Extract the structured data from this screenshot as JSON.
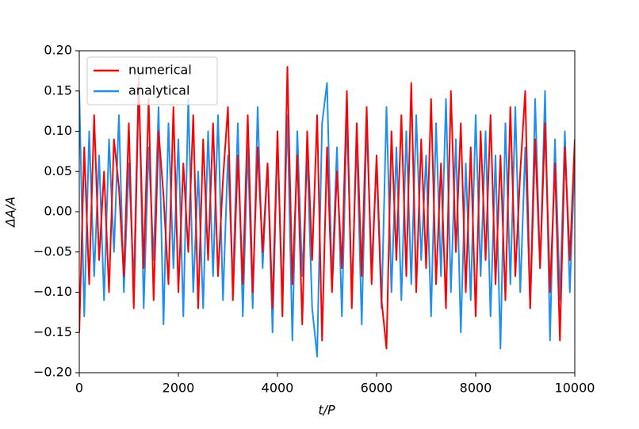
{
  "chart_data": {
    "type": "line",
    "xlabel": "t/P",
    "ylabel": "ΔA/A",
    "x": [
      0,
      100,
      200,
      300,
      400,
      500,
      600,
      700,
      800,
      900,
      1000,
      1100,
      1200,
      1300,
      1400,
      1500,
      1600,
      1700,
      1800,
      1900,
      2000,
      2100,
      2200,
      2300,
      2400,
      2500,
      2600,
      2700,
      2800,
      2900,
      3000,
      3100,
      3200,
      3300,
      3400,
      3500,
      3600,
      3700,
      3800,
      3900,
      4000,
      4100,
      4200,
      4300,
      4400,
      4500,
      4600,
      4700,
      4800,
      4900,
      5000,
      5100,
      5200,
      5300,
      5400,
      5500,
      5600,
      5700,
      5800,
      5900,
      6000,
      6100,
      6200,
      6300,
      6400,
      6500,
      6600,
      6700,
      6800,
      6900,
      7000,
      7100,
      7200,
      7300,
      7400,
      7500,
      7600,
      7700,
      7800,
      7900,
      8000,
      8100,
      8200,
      8300,
      8400,
      8500,
      8600,
      8700,
      8800,
      8900,
      9000,
      9100,
      9200,
      9300,
      9400,
      9500,
      9600,
      9700,
      9800,
      9900,
      10000
    ],
    "series": [
      {
        "name": "analytical",
        "color": "#1f8fef",
        "values": [
          0.15,
          -0.13,
          0.1,
          -0.08,
          0.07,
          -0.11,
          0.09,
          -0.05,
          0.12,
          -0.1,
          0.06,
          -0.09,
          0.17,
          -0.12,
          0.08,
          -0.06,
          0.13,
          -0.14,
          0.11,
          -0.07,
          0.09,
          -0.13,
          0.14,
          -0.1,
          0.05,
          -0.12,
          0.1,
          -0.08,
          0.12,
          -0.11,
          0.07,
          -0.09,
          0.11,
          -0.13,
          0.08,
          -0.12,
          0.13,
          -0.07,
          0.06,
          -0.15,
          0.09,
          -0.11,
          0.12,
          -0.16,
          0.1,
          -0.08,
          0.07,
          -0.12,
          -0.18,
          0.11,
          0.16,
          -0.09,
          0.08,
          -0.13,
          0.12,
          -0.1,
          0.09,
          -0.14,
          0.11,
          -0.07,
          0.06,
          -0.12,
          0.13,
          -0.1,
          0.08,
          -0.11,
          0.1,
          -0.09,
          0.12,
          -0.06,
          0.07,
          -0.13,
          0.11,
          -0.08,
          0.14,
          -0.1,
          0.09,
          -0.15,
          0.06,
          -0.11,
          0.12,
          -0.08,
          0.1,
          -0.13,
          0.07,
          -0.17,
          0.11,
          -0.09,
          0.13,
          -0.1,
          0.08,
          -0.12,
          0.14,
          -0.07,
          0.15,
          -0.16,
          0.09,
          -0.11,
          0.1,
          -0.1,
          0.07
        ]
      },
      {
        "name": "numerical",
        "color": "#ff0000",
        "values": [
          -0.15,
          0.08,
          -0.09,
          0.12,
          -0.06,
          0.05,
          -0.1,
          0.09,
          0.03,
          -0.08,
          0.11,
          -0.12,
          0.16,
          -0.07,
          0.14,
          -0.11,
          0.1,
          0.02,
          -0.09,
          0.13,
          -0.1,
          0.06,
          -0.05,
          0.12,
          -0.12,
          0.09,
          -0.06,
          0.11,
          -0.08,
          0.04,
          0.13,
          -0.11,
          0.07,
          -0.09,
          0.12,
          -0.1,
          0.08,
          -0.05,
          0.06,
          -0.12,
          0.1,
          -0.13,
          0.18,
          -0.09,
          0.07,
          -0.14,
          0.1,
          -0.06,
          0.12,
          -0.16,
          0.08,
          -0.1,
          0.05,
          -0.07,
          0.15,
          -0.12,
          0.11,
          -0.08,
          0.13,
          -0.09,
          0.07,
          -0.11,
          -0.17,
          0.1,
          -0.06,
          0.12,
          -0.08,
          0.16,
          -0.1,
          0.09,
          -0.07,
          0.14,
          -0.09,
          0.06,
          -0.12,
          0.15,
          -0.05,
          0.11,
          -0.1,
          0.08,
          -0.13,
          0.1,
          -0.06,
          0.12,
          -0.09,
          0.07,
          -0.11,
          0.13,
          -0.08,
          0.05,
          0.15,
          -0.12,
          0.09,
          -0.07,
          0.11,
          -0.1,
          0.06,
          -0.16,
          0.08,
          -0.06,
          0.09
        ]
      }
    ],
    "legend_order": [
      1,
      0
    ],
    "legend": "upper left",
    "xlim": [
      0,
      10000
    ],
    "xticks": [
      0,
      2000,
      4000,
      6000,
      8000,
      10000
    ],
    "ylim": [
      -0.2,
      0.2
    ],
    "yticks": [
      {
        "value": -0.2,
        "label": "−0.20"
      },
      {
        "value": -0.15,
        "label": "−0.15"
      },
      {
        "value": -0.1,
        "label": "−0.10"
      },
      {
        "value": -0.05,
        "label": "−0.05"
      },
      {
        "value": 0,
        "label": "0.00"
      },
      {
        "value": 0.05,
        "label": "0.05"
      },
      {
        "value": 0.1,
        "label": "0.10"
      },
      {
        "value": 0.15,
        "label": "0.15"
      },
      {
        "value": 0.2,
        "label": "0.20"
      }
    ]
  }
}
